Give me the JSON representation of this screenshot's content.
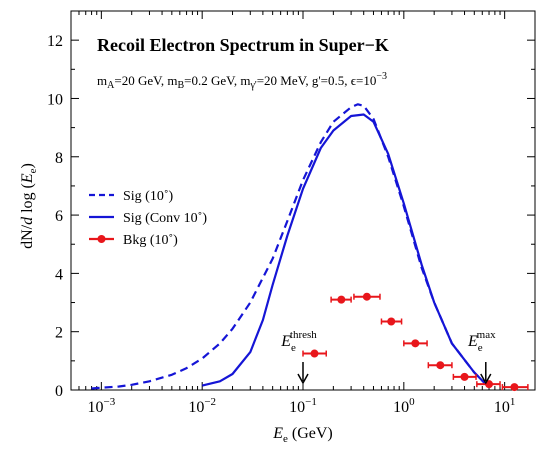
{
  "chart_data": {
    "type": "line",
    "title": "Recoil Electron Spectrum in Super−K",
    "subtitle": "m_A=20 GeV, m_B=0.2 GeV, m_γ'=20 MeV, g'=0.5, ϵ=10^−3",
    "subtitle_parts": {
      "mA": "20 GeV",
      "mB": "0.2 GeV",
      "mgamma": "20 MeV",
      "g": "0.5",
      "eps": "10",
      "eps_exp": "−3"
    },
    "xlabel": "E_e (GeV)",
    "ylabel": "dN/d log (E_e)",
    "x_scale": "log",
    "xlim": [
      0.0005,
      20
    ],
    "ylim": [
      0,
      13
    ],
    "x_ticks": [
      {
        "v": 0.001,
        "mant": "10",
        "exp": "−3"
      },
      {
        "v": 0.01,
        "mant": "10",
        "exp": "−2"
      },
      {
        "v": 0.1,
        "mant": "10",
        "exp": "−1"
      },
      {
        "v": 1,
        "mant": "10",
        "exp": "0"
      },
      {
        "v": 10,
        "mant": "10",
        "exp": "1"
      }
    ],
    "y_ticks": [
      0,
      2,
      4,
      6,
      8,
      10,
      12
    ],
    "legend_position": "left-middle",
    "legend": [
      "Sig (10˚)",
      "Sig (Conv 10˚)",
      "Bkg (10˚)"
    ],
    "colors": {
      "signal": "#1515d6",
      "background": "#e8161b",
      "frame": "#000000"
    },
    "series": [
      {
        "name": "Sig (10˚)",
        "style": "dashed",
        "x": [
          0.0008,
          0.001,
          0.0015,
          0.002,
          0.003,
          0.005,
          0.007,
          0.01,
          0.015,
          0.02,
          0.03,
          0.05,
          0.07,
          0.1,
          0.15,
          0.2,
          0.3,
          0.35,
          0.4,
          0.5,
          0.7,
          1.0,
          1.5,
          2.0,
          3.0,
          5.0,
          6.5
        ],
        "y": [
          0.05,
          0.08,
          0.12,
          0.18,
          0.3,
          0.52,
          0.75,
          1.08,
          1.6,
          2.1,
          3.0,
          4.5,
          5.8,
          7.2,
          8.5,
          9.2,
          9.7,
          9.8,
          9.75,
          9.3,
          8.0,
          6.3,
          4.2,
          3.0,
          1.6,
          0.6,
          0.2
        ]
      },
      {
        "name": "Sig (Conv 10˚)",
        "style": "solid",
        "x": [
          0.01,
          0.015,
          0.02,
          0.03,
          0.04,
          0.05,
          0.07,
          0.1,
          0.15,
          0.2,
          0.3,
          0.4,
          0.5,
          0.7,
          1.0,
          1.5,
          2.0,
          3.0,
          5.0,
          6.5
        ],
        "y": [
          0.15,
          0.3,
          0.55,
          1.3,
          2.4,
          3.6,
          5.3,
          6.9,
          8.3,
          8.9,
          9.4,
          9.45,
          9.2,
          8.1,
          6.4,
          4.3,
          3.0,
          1.6,
          0.6,
          0.2
        ]
      }
    ],
    "background_points": {
      "name": "Bkg (10˚)",
      "points": [
        {
          "x": 0.13,
          "xlo": 0.1,
          "xhi": 0.17,
          "y": 1.25
        },
        {
          "x": 0.24,
          "xlo": 0.19,
          "xhi": 0.3,
          "y": 3.1
        },
        {
          "x": 0.43,
          "xlo": 0.32,
          "xhi": 0.58,
          "y": 3.2
        },
        {
          "x": 0.75,
          "xlo": 0.6,
          "xhi": 0.95,
          "y": 2.35
        },
        {
          "x": 1.3,
          "xlo": 1.0,
          "xhi": 1.7,
          "y": 1.6
        },
        {
          "x": 2.3,
          "xlo": 1.75,
          "xhi": 3.0,
          "y": 0.85
        },
        {
          "x": 4.0,
          "xlo": 3.1,
          "xhi": 5.2,
          "y": 0.45
        },
        {
          "x": 7.0,
          "xlo": 5.3,
          "xhi": 9.0,
          "y": 0.2
        },
        {
          "x": 12.5,
          "xlo": 9.5,
          "xhi": 17.0,
          "y": 0.1
        }
      ]
    },
    "annotations": [
      {
        "text": "E_e^thresh",
        "base": "E",
        "sub": "e",
        "sup": "thresh",
        "x": 0.1,
        "arrow": "down"
      },
      {
        "text": "E_e^max",
        "base": "E",
        "sub": "e",
        "sup": "max",
        "x": 6.5,
        "arrow": "down"
      }
    ]
  }
}
